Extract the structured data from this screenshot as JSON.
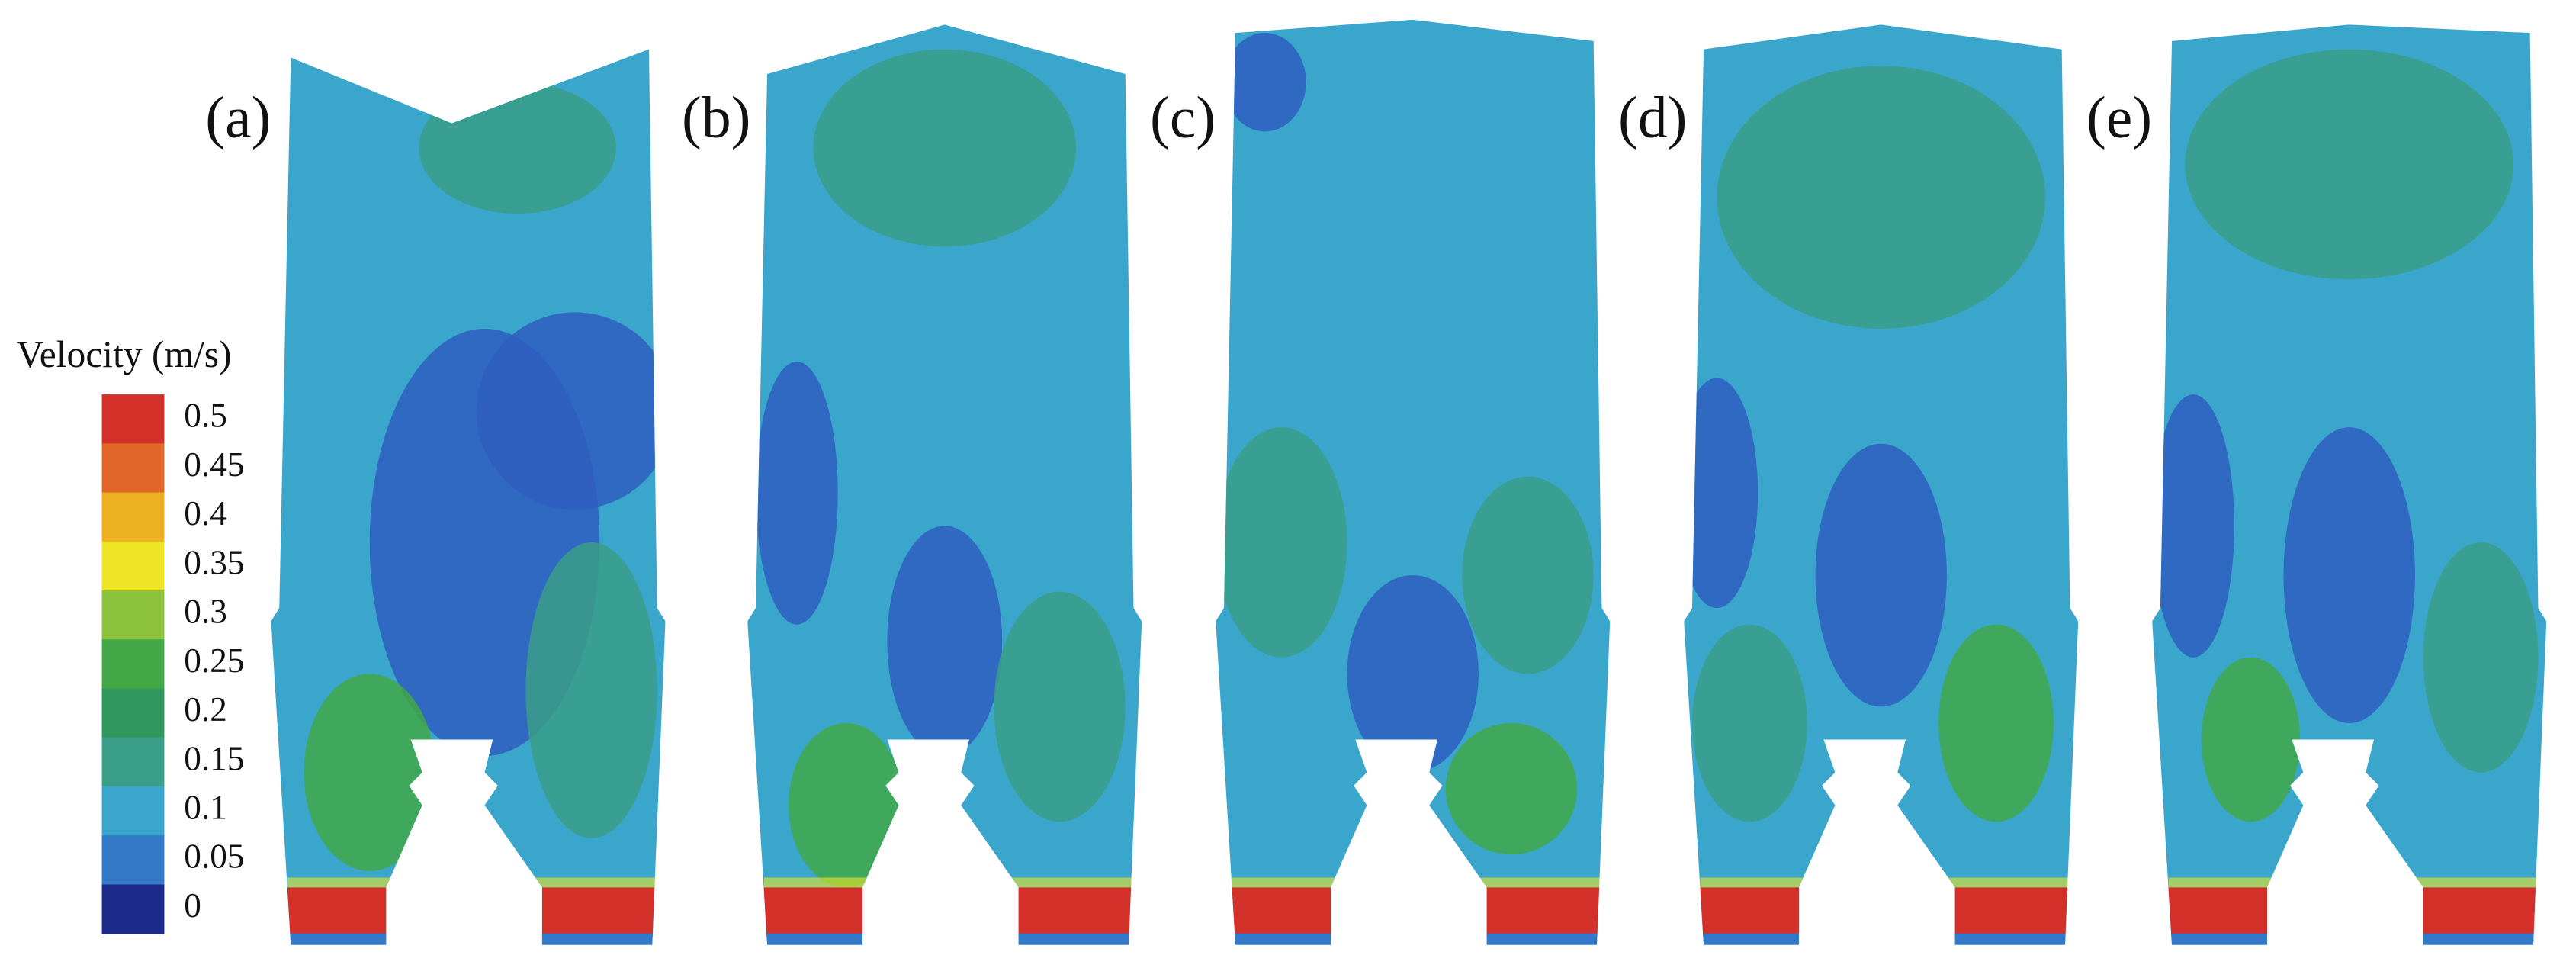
{
  "panels": [
    {
      "label": "(a)"
    },
    {
      "label": "(b)"
    },
    {
      "label": "(c)"
    },
    {
      "label": "(d)"
    },
    {
      "label": "(e)"
    }
  ],
  "legend": {
    "title": "Velocity (m/s)",
    "items": [
      {
        "label": "0.5",
        "color": "#d3302a"
      },
      {
        "label": "0.45",
        "color": "#e0662a"
      },
      {
        "label": "0.4",
        "color": "#ecb020"
      },
      {
        "label": "0.35",
        "color": "#eee624"
      },
      {
        "label": "0.3",
        "color": "#8cc23c"
      },
      {
        "label": "0.25",
        "color": "#42a848"
      },
      {
        "label": "0.2",
        "color": "#30985c"
      },
      {
        "label": "0.15",
        "color": "#3b9e88"
      },
      {
        "label": "0.1",
        "color": "#3aa6cc"
      },
      {
        "label": "0.05",
        "color": "#3478c8"
      },
      {
        "label": "0",
        "color": "#1c2a8a"
      }
    ]
  }
}
